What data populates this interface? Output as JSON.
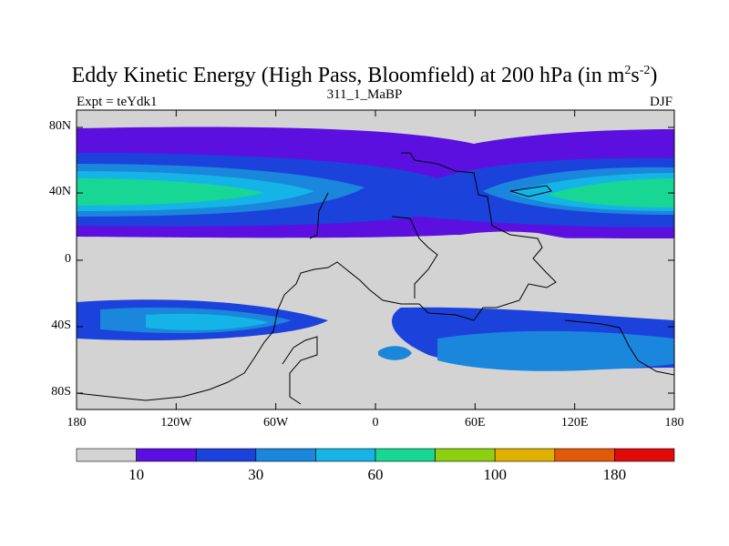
{
  "title": {
    "main": "Eddy Kinetic Energy (High Pass, Bloomfield) at 200 hPa (in m",
    "sup1": "2",
    "mid": "s",
    "sup2": "-2",
    "end": ")"
  },
  "left_label": "Expt = teYdk1",
  "center_label": "311_1_MaBP",
  "right_label": "DJF",
  "map": {
    "y_ticks": [
      "80N",
      "40N",
      "0",
      "40S",
      "80S"
    ],
    "x_ticks": [
      "180",
      "120W",
      "60W",
      "0",
      "60E",
      "120E",
      "180"
    ]
  },
  "colorbar": {
    "colors": [
      "#d3d3d3",
      "#5b10e0",
      "#1c42dc",
      "#1a86dc",
      "#14b4e6",
      "#18d694",
      "#8cd010",
      "#e0b000",
      "#e05a0a",
      "#e00a0a"
    ],
    "labels": [
      "10",
      "30",
      "60",
      "100",
      "180"
    ]
  }
}
